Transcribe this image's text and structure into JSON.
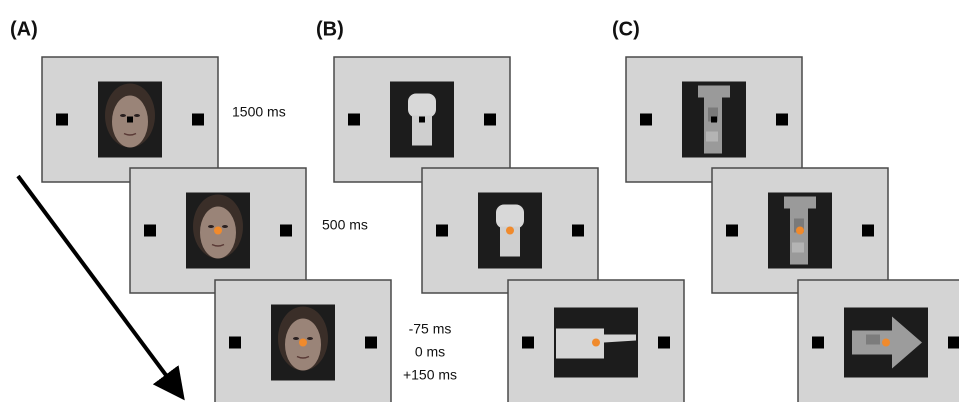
{
  "panels": [
    {
      "label": "(A)"
    },
    {
      "label": "(B)"
    },
    {
      "label": "(C)"
    }
  ],
  "timings": [
    "1500 ms",
    "500 ms",
    "-75 ms",
    "0 ms",
    "+150 ms"
  ]
}
